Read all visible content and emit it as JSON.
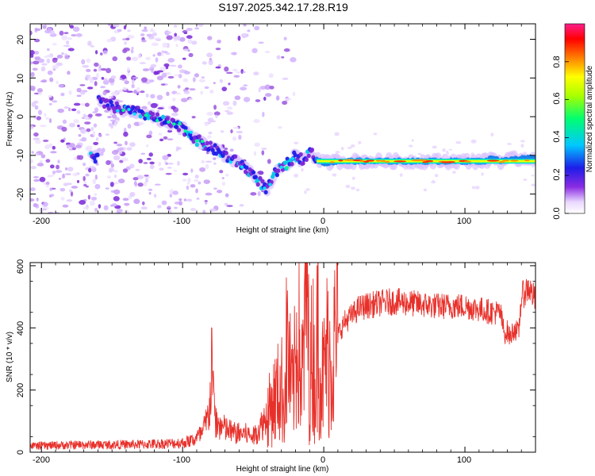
{
  "figure": {
    "title": "S197.2025.342.17.28.R19"
  },
  "chart_data": [
    {
      "type": "heatmap",
      "title": "S197.2025.342.17.28.R19",
      "xlabel": "Height of straight line (km)",
      "ylabel": "Frequency (Hz)",
      "xlim": [
        -208,
        150
      ],
      "ylim": [
        -25,
        24
      ],
      "xticks": [
        -200,
        -100,
        0,
        100
      ],
      "xtick_labels": [
        "-200",
        "-100",
        "0",
        "100"
      ],
      "yticks": [
        -20,
        -10,
        0,
        10,
        20
      ],
      "ytick_labels": [
        "-20",
        "-10",
        "0",
        "10",
        "20"
      ],
      "ridge": {
        "x": [
          -160,
          -145,
          -130,
          -115,
          -100,
          -90,
          -80,
          -70,
          -60,
          -50,
          -45,
          -40,
          -35,
          -30,
          -25,
          -20,
          -15,
          -10,
          -5,
          0,
          10,
          20,
          40,
          60,
          80,
          100,
          115,
          120,
          125,
          135,
          150
        ],
        "y": [
          4,
          2,
          1,
          -1,
          -3,
          -6,
          -8,
          -10,
          -12,
          -15,
          -17,
          -19,
          -15,
          -13,
          -12,
          -10,
          -11,
          -9,
          -11,
          -12,
          -11.5,
          -11.5,
          -11.5,
          -11.5,
          -11.5,
          -11.5,
          -11.5,
          -10.5,
          -11.5,
          -11,
          -10.5
        ]
      },
      "colorbar": {
        "label": "Normalized spectral amplitude",
        "range": [
          0,
          1
        ],
        "ticks": [
          0.0,
          0.2,
          0.4,
          0.6,
          0.8
        ],
        "tick_labels": [
          "0.0",
          "0.2",
          "0.4",
          "0.6",
          "0.8"
        ]
      }
    },
    {
      "type": "line",
      "title": "",
      "xlabel": "Height of straight line (km)",
      "ylabel": "SNR (10 * v/v)",
      "xlim": [
        -208,
        150
      ],
      "ylim": [
        0,
        610
      ],
      "xticks": [
        -200,
        -100,
        0,
        100
      ],
      "xtick_labels": [
        "-200",
        "-100",
        "0",
        "100"
      ],
      "yticks": [
        0,
        200,
        400,
        600
      ],
      "ytick_labels": [
        "0",
        "200",
        "400",
        "600"
      ],
      "series": [
        {
          "name": "SNR",
          "color": "#e8302a",
          "x": [
            -208,
            -190,
            -170,
            -150,
            -130,
            -110,
            -100,
            -92,
            -86,
            -82,
            -80,
            -79,
            -78,
            -76,
            -72,
            -68,
            -62,
            -56,
            -50,
            -45,
            -40,
            -35,
            -30,
            -28,
            -26,
            -24,
            -22,
            -20,
            -18,
            -16,
            -14,
            -12,
            -10,
            -8,
            -6,
            -4,
            -2,
            0,
            2,
            5,
            10,
            15,
            20,
            25,
            30,
            40,
            50,
            60,
            70,
            80,
            90,
            100,
            110,
            120,
            125,
            128,
            130,
            132,
            135,
            138,
            140,
            145,
            150
          ],
          "y": [
            20,
            22,
            24,
            24,
            25,
            28,
            30,
            40,
            60,
            110,
            200,
            370,
            150,
            90,
            80,
            70,
            60,
            60,
            50,
            80,
            120,
            170,
            210,
            150,
            360,
            250,
            180,
            290,
            450,
            210,
            330,
            600,
            180,
            360,
            200,
            420,
            240,
            240,
            320,
            300,
            380,
            420,
            440,
            465,
            470,
            480,
            485,
            480,
            475,
            470,
            470,
            470,
            460,
            450,
            450,
            380,
            390,
            370,
            400,
            380,
            500,
            530,
            490
          ]
        }
      ]
    }
  ]
}
